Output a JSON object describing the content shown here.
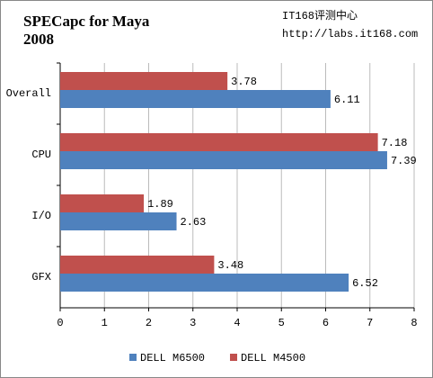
{
  "chart_data": {
    "type": "hbar",
    "title": "SPECapc for Maya 2008",
    "watermark": [
      "IT168评测中心",
      "http://labs.it168.com"
    ],
    "categories": [
      "Overall",
      "CPU",
      "I/O",
      "GFX"
    ],
    "series": [
      {
        "name": "DELL M6500",
        "color": "#4f81bd",
        "values": [
          6.11,
          7.39,
          2.63,
          6.52
        ]
      },
      {
        "name": "DELL M4500",
        "color": "#c0504d",
        "values": [
          3.78,
          7.18,
          1.89,
          3.48
        ]
      }
    ],
    "xlim": [
      0,
      8
    ],
    "xticks": [
      0,
      1,
      2,
      3,
      4,
      5,
      6,
      7,
      8
    ],
    "grid": true,
    "legend": "bottom"
  }
}
